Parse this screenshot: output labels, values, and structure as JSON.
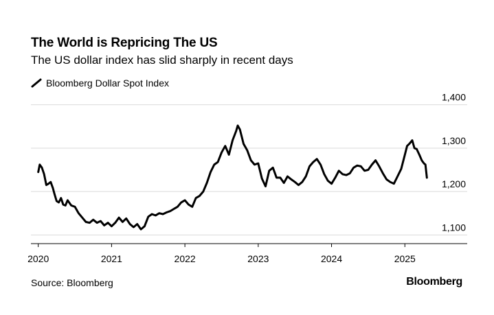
{
  "header": {
    "title": "The World is Repricing The US",
    "subtitle": "The US dollar index has slid sharply in recent days"
  },
  "footer": {
    "source": "Source: Bloomberg",
    "brand": "Bloomberg"
  },
  "chart_data": {
    "type": "line",
    "title": "The World is Repricing The US",
    "subtitle": "The US dollar index has slid sharply in recent days",
    "xlabel": "",
    "ylabel": "",
    "xlim": [
      2019.9,
      2025.85
    ],
    "ylim": [
      1080,
      1420
    ],
    "y_ticks": [
      1100,
      1200,
      1300,
      1400
    ],
    "y_tick_labels": [
      "1,100",
      "1,200",
      "1,300",
      "1,400"
    ],
    "x_ticks": [
      2020,
      2021,
      2022,
      2023,
      2024,
      2025
    ],
    "x_tick_labels": [
      "2020",
      "2021",
      "2022",
      "2023",
      "2024",
      "2025"
    ],
    "grid": true,
    "y_axis_side": "right",
    "legend_position": "top-left",
    "series": [
      {
        "name": "Bloomberg Dollar Spot Index",
        "color": "#000000",
        "x": [
          2020.0,
          2020.02,
          2020.05,
          2020.08,
          2020.11,
          2020.14,
          2020.17,
          2020.2,
          2020.22,
          2020.25,
          2020.28,
          2020.31,
          2020.34,
          2020.37,
          2020.4,
          2020.45,
          2020.5,
          2020.55,
          2020.6,
          2020.65,
          2020.7,
          2020.75,
          2020.8,
          2020.85,
          2020.9,
          2020.95,
          2021.0,
          2021.05,
          2021.1,
          2021.15,
          2021.2,
          2021.25,
          2021.3,
          2021.35,
          2021.4,
          2021.45,
          2021.5,
          2021.55,
          2021.6,
          2021.65,
          2021.7,
          2021.75,
          2021.8,
          2021.85,
          2021.9,
          2021.95,
          2022.0,
          2022.05,
          2022.1,
          2022.15,
          2022.2,
          2022.25,
          2022.3,
          2022.35,
          2022.4,
          2022.45,
          2022.5,
          2022.55,
          2022.6,
          2022.65,
          2022.7,
          2022.72,
          2022.75,
          2022.8,
          2022.85,
          2022.9,
          2022.95,
          2023.0,
          2023.05,
          2023.1,
          2023.15,
          2023.2,
          2023.25,
          2023.3,
          2023.35,
          2023.4,
          2023.45,
          2023.5,
          2023.55,
          2023.6,
          2023.65,
          2023.7,
          2023.75,
          2023.8,
          2023.85,
          2023.9,
          2023.95,
          2024.0,
          2024.05,
          2024.1,
          2024.15,
          2024.2,
          2024.25,
          2024.3,
          2024.35,
          2024.4,
          2024.45,
          2024.5,
          2024.55,
          2024.6,
          2024.65,
          2024.7,
          2024.75,
          2024.8,
          2024.85,
          2024.9,
          2024.95,
          2025.0,
          2025.03,
          2025.06,
          2025.1,
          2025.13,
          2025.16,
          2025.2,
          2025.23,
          2025.26,
          2025.28,
          2025.3
        ],
        "values": [
          1245,
          1262,
          1255,
          1240,
          1215,
          1218,
          1222,
          1208,
          1195,
          1178,
          1175,
          1185,
          1170,
          1168,
          1180,
          1168,
          1165,
          1150,
          1140,
          1130,
          1128,
          1135,
          1128,
          1132,
          1122,
          1128,
          1120,
          1128,
          1140,
          1130,
          1138,
          1125,
          1118,
          1125,
          1113,
          1120,
          1142,
          1148,
          1145,
          1150,
          1148,
          1152,
          1155,
          1160,
          1165,
          1175,
          1180,
          1170,
          1165,
          1185,
          1190,
          1200,
          1220,
          1245,
          1262,
          1268,
          1290,
          1305,
          1285,
          1318,
          1340,
          1352,
          1343,
          1310,
          1295,
          1272,
          1262,
          1265,
          1230,
          1212,
          1248,
          1255,
          1232,
          1232,
          1220,
          1235,
          1228,
          1222,
          1215,
          1222,
          1235,
          1258,
          1268,
          1275,
          1262,
          1240,
          1225,
          1218,
          1232,
          1248,
          1240,
          1238,
          1242,
          1255,
          1260,
          1258,
          1248,
          1250,
          1262,
          1272,
          1258,
          1242,
          1228,
          1222,
          1218,
          1235,
          1252,
          1285,
          1305,
          1310,
          1318,
          1300,
          1298,
          1284,
          1272,
          1265,
          1262,
          1232
        ]
      }
    ]
  }
}
